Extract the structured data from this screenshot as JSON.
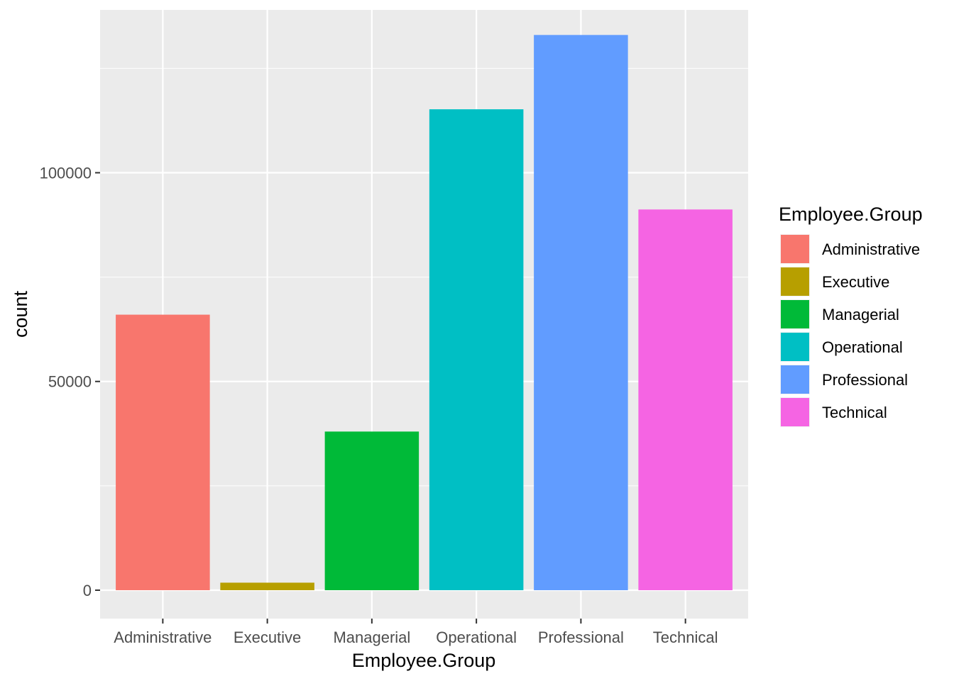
{
  "chart_data": {
    "type": "bar",
    "title": "",
    "xlabel": "Employee.Group",
    "ylabel": "count",
    "categories": [
      "Administrative",
      "Executive",
      "Managerial",
      "Operational",
      "Professional",
      "Technical"
    ],
    "values": [
      66000,
      1800,
      38000,
      115200,
      133000,
      91200
    ],
    "colors": [
      "#F8766D",
      "#B79F00",
      "#00BA38",
      "#00BFC4",
      "#619CFF",
      "#F564E3"
    ],
    "ylim": [
      -6800,
      139000
    ],
    "yticks": [
      0,
      50000,
      100000
    ],
    "ytick_labels": [
      "0",
      "50000",
      "100000"
    ],
    "grid": true,
    "legend": {
      "title": "Employee.Group",
      "position": "right",
      "items": [
        "Administrative",
        "Executive",
        "Managerial",
        "Operational",
        "Professional",
        "Technical"
      ]
    }
  }
}
